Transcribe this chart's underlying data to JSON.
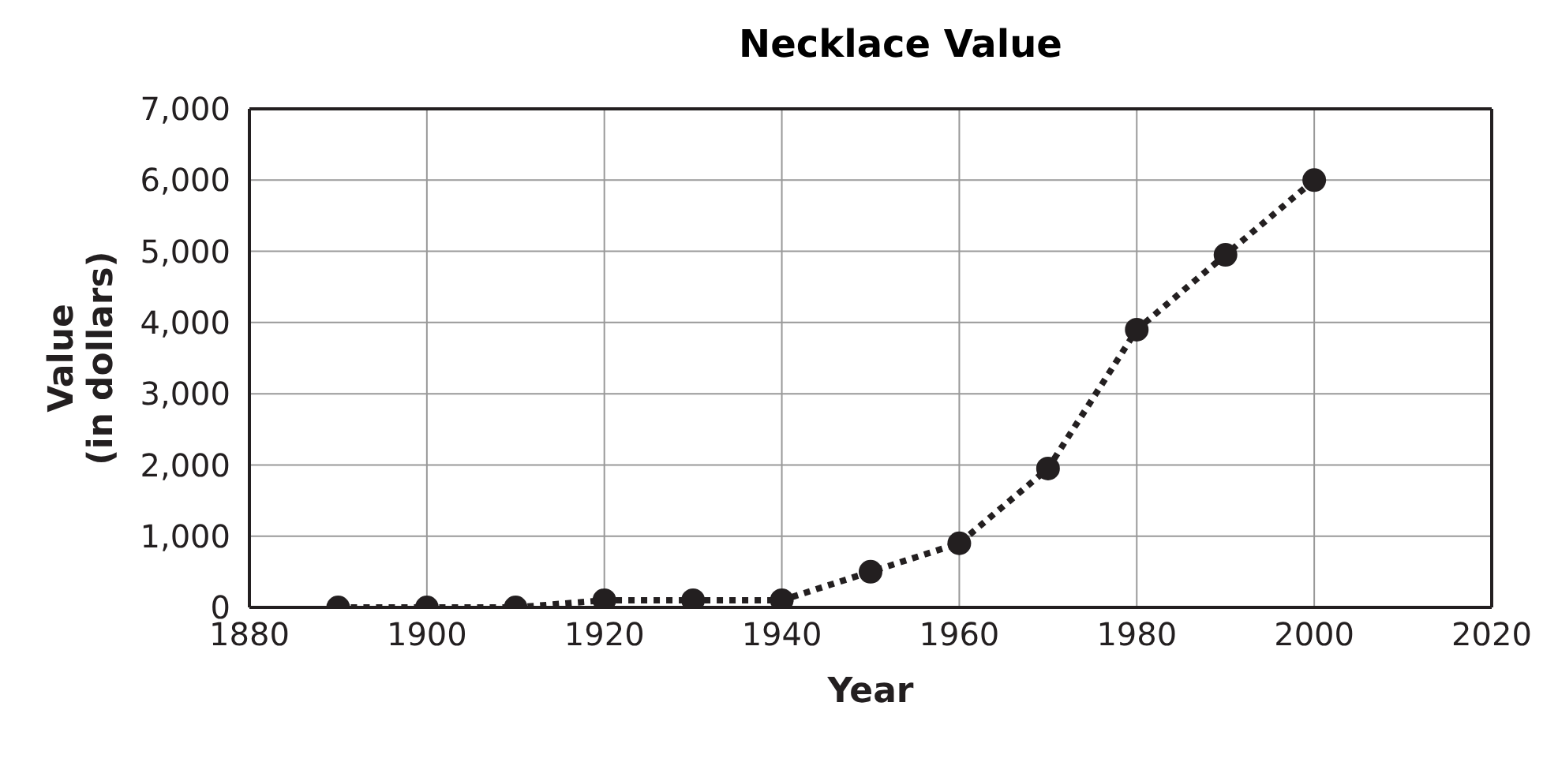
{
  "chart_data": {
    "type": "line",
    "title": "Necklace Value",
    "xlabel": "Year",
    "ylabel": "Value\n(in dollars)",
    "x": [
      1890,
      1900,
      1910,
      1920,
      1930,
      1940,
      1950,
      1960,
      1970,
      1980,
      1990,
      2000
    ],
    "series": [
      {
        "color": "#231f20",
        "values": [
          0,
          0,
          0,
          100,
          100,
          100,
          500,
          900,
          1950,
          3900,
          4950,
          6000
        ]
      }
    ],
    "xlim": [
      1880,
      2020
    ],
    "xticks": [
      1880,
      1900,
      1920,
      1940,
      1960,
      1980,
      2000,
      2020
    ],
    "ylim": [
      0,
      7000
    ],
    "yticks": [
      {
        "value": 0,
        "label": "0"
      },
      {
        "value": 1000,
        "label": "1,000"
      },
      {
        "value": 2000,
        "label": "2,000"
      },
      {
        "value": 3000,
        "label": "3,000"
      },
      {
        "value": 4000,
        "label": "4,000"
      },
      {
        "value": 5000,
        "label": "5,000"
      },
      {
        "value": 6000,
        "label": "6,000"
      },
      {
        "value": 7000,
        "label": "7,000"
      }
    ],
    "grid": true,
    "marker": "circle",
    "line_style": "dotted"
  }
}
